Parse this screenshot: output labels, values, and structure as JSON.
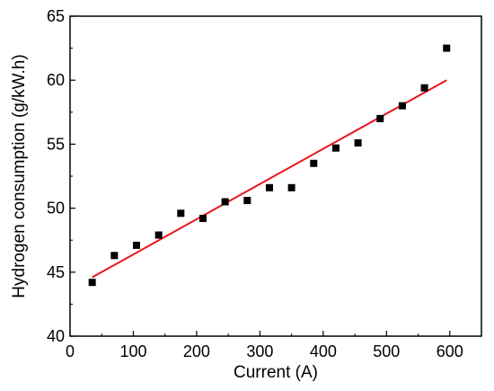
{
  "chart_data": {
    "type": "scatter",
    "title": "",
    "xlabel": "Current (A)",
    "ylabel": "Hydrogen consumption (g/kW.h)",
    "xlim": [
      0,
      650
    ],
    "ylim": [
      40,
      65
    ],
    "xticks": [
      0,
      100,
      200,
      300,
      400,
      500,
      600
    ],
    "yticks": [
      40,
      45,
      50,
      55,
      60,
      65
    ],
    "grid": false,
    "colors": {
      "points": "#000000",
      "fit_line": "#e8141c",
      "axes": "#000000"
    },
    "series": [
      {
        "kind": "points",
        "x": [
          35,
          70,
          105,
          140,
          175,
          210,
          245,
          280,
          315,
          350,
          385,
          420,
          455,
          490,
          525,
          560,
          595
        ],
        "y": [
          44.2,
          46.3,
          47.1,
          47.9,
          49.6,
          49.2,
          50.5,
          50.6,
          51.6,
          51.6,
          53.5,
          54.7,
          55.1,
          57.0,
          58.0,
          59.4,
          62.5
        ]
      },
      {
        "kind": "fit_line",
        "x": [
          35,
          595
        ],
        "y": [
          44.6,
          60.0
        ]
      }
    ]
  }
}
